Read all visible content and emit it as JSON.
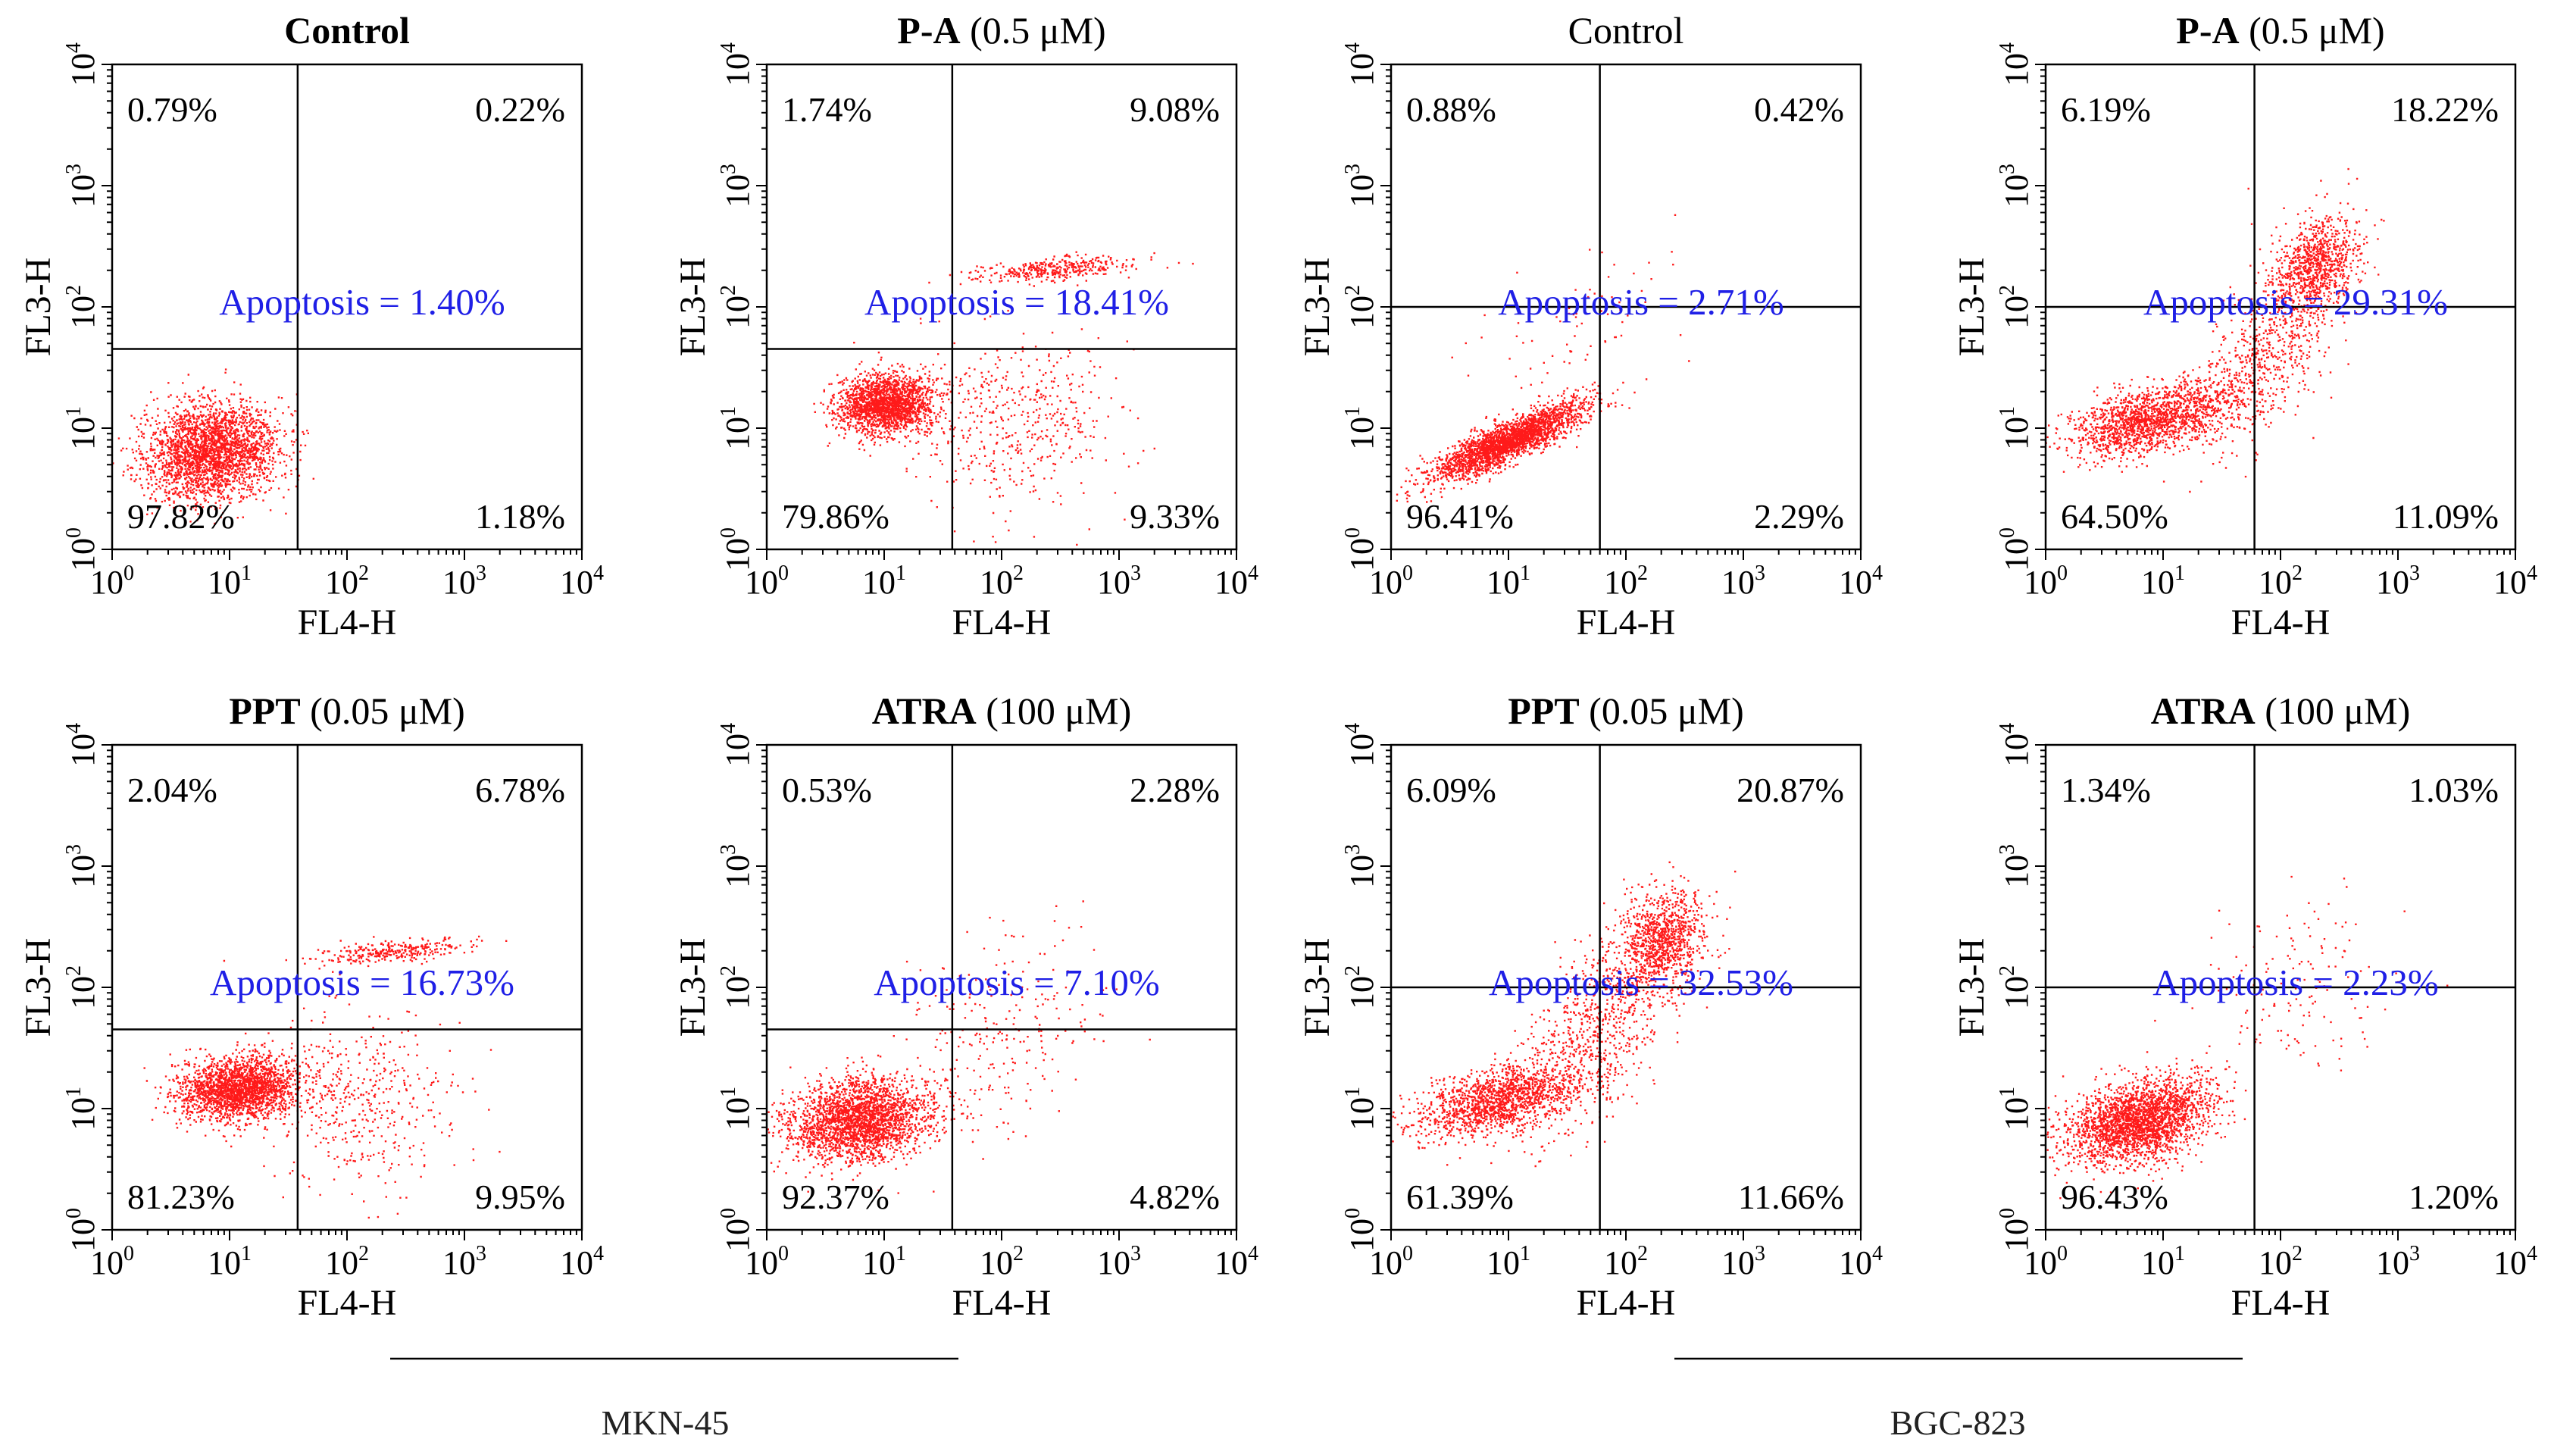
{
  "figure": {
    "groups": [
      {
        "label": "MKN-45"
      },
      {
        "label": "BGC-823"
      }
    ]
  },
  "chart_data": [
    {
      "type": "scatter",
      "cell_line": "MKN-45",
      "title_bold": "Control",
      "title_rest": "",
      "xlabel": "FL4-H",
      "ylabel": "FL3-H",
      "xscale": "log",
      "yscale": "log",
      "xlim": [
        1,
        10000
      ],
      "ylim": [
        1,
        10000
      ],
      "tick_values": [
        "10^0",
        "10^1",
        "10^2",
        "10^3",
        "10^4"
      ],
      "gate_x": 38,
      "gate_y": 45,
      "quadrant_labels": {
        "ul": "0.79%",
        "ur": "0.22%",
        "ll": "97.82%",
        "lr": "1.18%"
      },
      "apoptosis": "Apoptosis = 1.40%",
      "clusters": [
        {
          "cx": 7,
          "cy": 6.5,
          "sx": 0.28,
          "sy": 0.2,
          "n": 2600,
          "rho": 0.1
        }
      ]
    },
    {
      "type": "scatter",
      "cell_line": "MKN-45",
      "title_bold": "P-A",
      "title_rest": " (0.5 μM)",
      "xlabel": "FL4-H",
      "ylabel": "FL3-H",
      "xscale": "log",
      "yscale": "log",
      "xlim": [
        1,
        10000
      ],
      "ylim": [
        1,
        10000
      ],
      "tick_values": [
        "10^0",
        "10^1",
        "10^2",
        "10^3",
        "10^4"
      ],
      "gate_x": 38,
      "gate_y": 45,
      "quadrant_labels": {
        "ul": "1.74%",
        "ur": "9.08%",
        "ll": "79.86%",
        "lr": "9.33%"
      },
      "apoptosis": "Apoptosis = 18.41%",
      "clusters": [
        {
          "cx": 10,
          "cy": 16,
          "sx": 0.2,
          "sy": 0.12,
          "n": 2000,
          "rho": 0.1
        },
        {
          "cx": 130,
          "cy": 12,
          "sx": 0.45,
          "sy": 0.35,
          "n": 500,
          "rho": 0
        },
        {
          "cx": 300,
          "cy": 210,
          "sx": 0.35,
          "sy": 0.05,
          "n": 380,
          "rho": 0.5
        }
      ]
    },
    {
      "type": "scatter",
      "cell_line": "BGC-823",
      "title_bold": "",
      "title_rest": "Control",
      "xlabel": "FL4-H",
      "ylabel": "FL3-H",
      "xscale": "log",
      "yscale": "log",
      "xlim": [
        1,
        10000
      ],
      "ylim": [
        1,
        10000
      ],
      "tick_values": [
        "10^0",
        "10^1",
        "10^2",
        "10^3",
        "10^4"
      ],
      "gate_x": 60,
      "gate_y": 100,
      "quadrant_labels": {
        "ul": "0.88%",
        "ur": "0.42%",
        "ll": "96.41%",
        "lr": "2.29%"
      },
      "apoptosis": "Apoptosis = 2.71%",
      "clusters": [
        {
          "cx": 10,
          "cy": 8,
          "sx": 0.32,
          "sy": 0.16,
          "n": 2500,
          "rho": 0.85
        },
        {
          "cx": 40,
          "cy": 60,
          "sx": 0.4,
          "sy": 0.35,
          "n": 80,
          "rho": 0.3
        }
      ]
    },
    {
      "type": "scatter",
      "cell_line": "BGC-823",
      "title_bold": "P-A",
      "title_rest": " (0.5 μM)",
      "xlabel": "FL4-H",
      "ylabel": "FL3-H",
      "xscale": "log",
      "yscale": "log",
      "xlim": [
        1,
        10000
      ],
      "ylim": [
        1,
        10000
      ],
      "tick_values": [
        "10^0",
        "10^1",
        "10^2",
        "10^3",
        "10^4"
      ],
      "gate_x": 60,
      "gate_y": 100,
      "quadrant_labels": {
        "ul": "6.19%",
        "ur": "18.22%",
        "ll": "64.50%",
        "lr": "11.09%"
      },
      "apoptosis": "Apoptosis = 29.31%",
      "clusters": [
        {
          "cx": 8,
          "cy": 12,
          "sx": 0.35,
          "sy": 0.15,
          "n": 1600,
          "rho": 0.5
        },
        {
          "cx": 70,
          "cy": 40,
          "sx": 0.3,
          "sy": 0.4,
          "n": 700,
          "rho": 0.6
        },
        {
          "cx": 200,
          "cy": 220,
          "sx": 0.18,
          "sy": 0.2,
          "n": 900,
          "rho": 0.2
        }
      ]
    },
    {
      "type": "scatter",
      "cell_line": "MKN-45",
      "title_bold": "PPT",
      "title_rest": " (0.05 μM)",
      "xlabel": "FL4-H",
      "ylabel": "FL3-H",
      "xscale": "log",
      "yscale": "log",
      "xlim": [
        1,
        10000
      ],
      "ylim": [
        1,
        10000
      ],
      "tick_values": [
        "10^0",
        "10^1",
        "10^2",
        "10^3",
        "10^4"
      ],
      "gate_x": 38,
      "gate_y": 45,
      "quadrant_labels": {
        "ul": "2.04%",
        "ur": "6.78%",
        "ll": "81.23%",
        "lr": "9.95%"
      },
      "apoptosis": "Apoptosis = 16.73%",
      "clusters": [
        {
          "cx": 12,
          "cy": 15,
          "sx": 0.25,
          "sy": 0.13,
          "n": 2200,
          "rho": 0.1
        },
        {
          "cx": 130,
          "cy": 12,
          "sx": 0.4,
          "sy": 0.35,
          "n": 450,
          "rho": 0
        },
        {
          "cx": 250,
          "cy": 200,
          "sx": 0.33,
          "sy": 0.05,
          "n": 320,
          "rho": 0.5
        }
      ]
    },
    {
      "type": "scatter",
      "cell_line": "MKN-45",
      "title_bold": "ATRA",
      "title_rest": " (100 μM)",
      "xlabel": "FL4-H",
      "ylabel": "FL3-H",
      "xscale": "log",
      "yscale": "log",
      "xlim": [
        1,
        10000
      ],
      "ylim": [
        1,
        10000
      ],
      "tick_values": [
        "10^0",
        "10^1",
        "10^2",
        "10^3",
        "10^4"
      ],
      "gate_x": 38,
      "gate_y": 45,
      "quadrant_labels": {
        "ul": "0.53%",
        "ur": "2.28%",
        "ll": "92.37%",
        "lr": "4.82%"
      },
      "apoptosis": "Apoptosis = 7.10%",
      "clusters": [
        {
          "cx": 6,
          "cy": 8,
          "sx": 0.3,
          "sy": 0.17,
          "n": 2500,
          "rho": 0.15
        },
        {
          "cx": 90,
          "cy": 40,
          "sx": 0.45,
          "sy": 0.5,
          "n": 260,
          "rho": 0.4
        }
      ]
    },
    {
      "type": "scatter",
      "cell_line": "BGC-823",
      "title_bold": "PPT",
      "title_rest": " (0.05 μM)",
      "xlabel": "FL4-H",
      "ylabel": "FL3-H",
      "xscale": "log",
      "yscale": "log",
      "xlim": [
        1,
        10000
      ],
      "ylim": [
        1,
        10000
      ],
      "tick_values": [
        "10^0",
        "10^1",
        "10^2",
        "10^3",
        "10^4"
      ],
      "gate_x": 60,
      "gate_y": 100,
      "quadrant_labels": {
        "ul": "6.09%",
        "ur": "20.87%",
        "ll": "61.39%",
        "lr": "11.66%"
      },
      "apoptosis": "Apoptosis = 32.53%",
      "clusters": [
        {
          "cx": 8,
          "cy": 12,
          "sx": 0.35,
          "sy": 0.15,
          "n": 1500,
          "rho": 0.5
        },
        {
          "cx": 60,
          "cy": 50,
          "sx": 0.35,
          "sy": 0.45,
          "n": 800,
          "rho": 0.6
        },
        {
          "cx": 200,
          "cy": 250,
          "sx": 0.18,
          "sy": 0.2,
          "n": 950,
          "rho": 0.2
        }
      ]
    },
    {
      "type": "scatter",
      "cell_line": "BGC-823",
      "title_bold": "ATRA",
      "title_rest": " (100 μM)",
      "xlabel": "FL4-H",
      "ylabel": "FL3-H",
      "xscale": "log",
      "yscale": "log",
      "xlim": [
        1,
        10000
      ],
      "ylim": [
        1,
        10000
      ],
      "tick_values": [
        "10^0",
        "10^1",
        "10^2",
        "10^3",
        "10^4"
      ],
      "gate_x": 60,
      "gate_y": 100,
      "quadrant_labels": {
        "ul": "1.34%",
        "ur": "1.03%",
        "ll": "96.43%",
        "lr": "1.20%"
      },
      "apoptosis": "Apoptosis = 2.23%",
      "clusters": [
        {
          "cx": 6,
          "cy": 8,
          "sx": 0.3,
          "sy": 0.17,
          "n": 2500,
          "rho": 0.35
        },
        {
          "cx": 120,
          "cy": 90,
          "sx": 0.4,
          "sy": 0.4,
          "n": 150,
          "rho": 0.3
        }
      ]
    }
  ]
}
